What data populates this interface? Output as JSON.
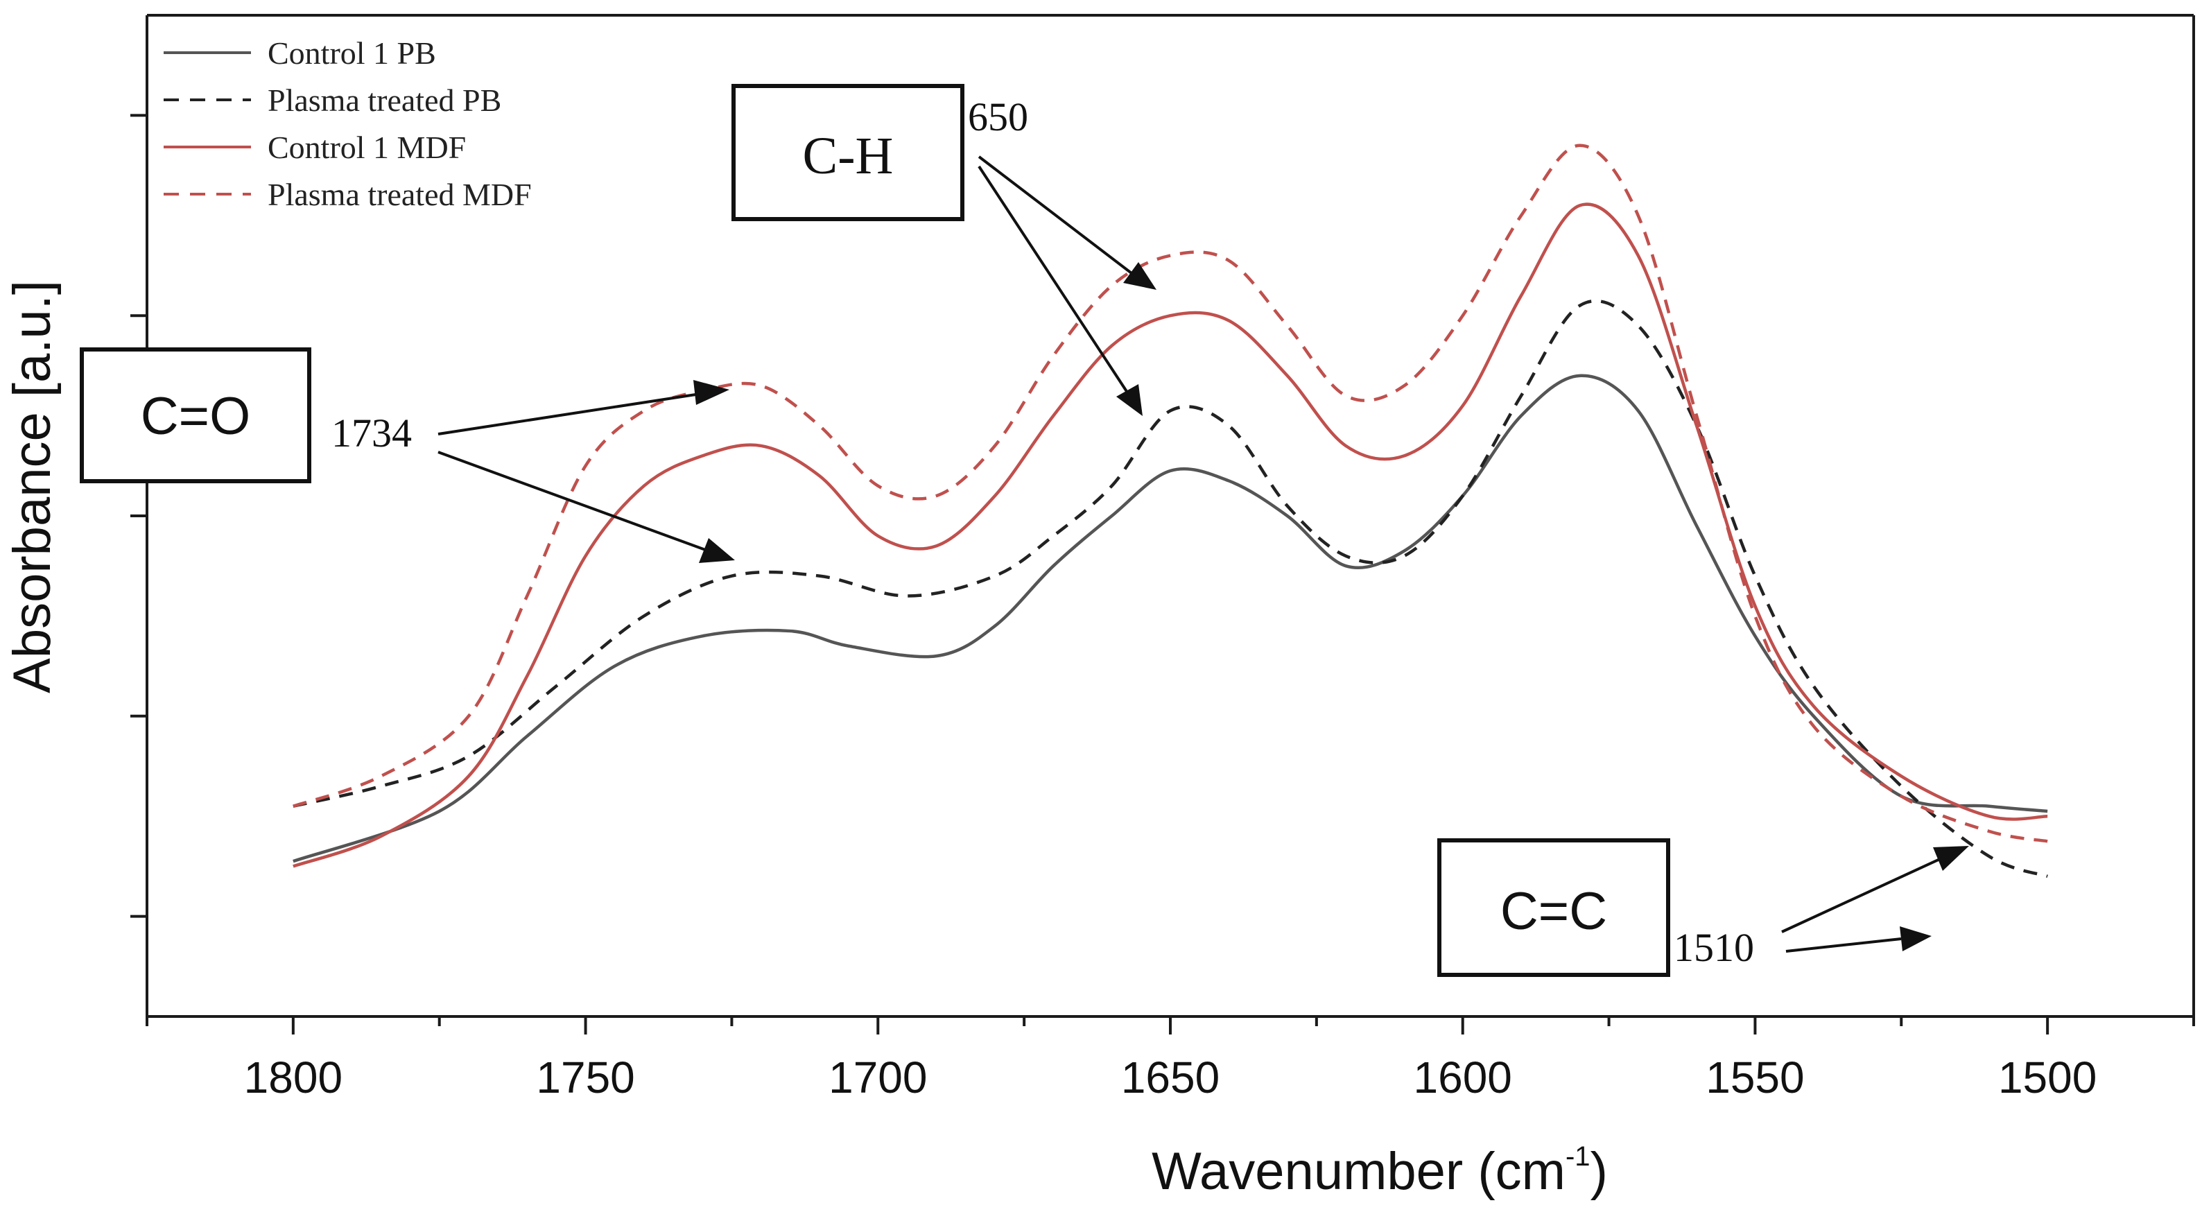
{
  "chart_data": {
    "type": "line",
    "title": "",
    "xlabel": "Wavenumber (cm",
    "xlabel_superscript": "-1",
    "xlabel_close": ")",
    "ylabel": "Absorbance [a.u.]",
    "xlim": [
      1825,
      1475
    ],
    "ylim": [
      0,
      100
    ],
    "x_ticks": [
      1800,
      1750,
      1700,
      1650,
      1600,
      1550,
      1500
    ],
    "x_tick_labels": [
      "1800",
      "1750",
      "1700",
      "1650",
      "1600",
      "1550",
      "1500"
    ],
    "y_ticks": [
      10,
      30,
      50,
      70,
      90
    ],
    "series": [
      {
        "name": "Control 1 PB",
        "color": "#555555",
        "dash": "solid",
        "x": [
          1800,
          1775,
          1760,
          1745,
          1730,
          1715,
          1705,
          1690,
          1680,
          1670,
          1660,
          1650,
          1640,
          1630,
          1620,
          1610,
          1600,
          1590,
          1580,
          1570,
          1560,
          1550,
          1540,
          1525,
          1510,
          1500
        ],
        "y": [
          15.5,
          20.5,
          28,
          35,
          38,
          38.5,
          37,
          36,
          39,
          45,
          50,
          54.5,
          53.5,
          50,
          45,
          46.5,
          52,
          60,
          64,
          60.5,
          49,
          38,
          30,
          22,
          21,
          20.5
        ]
      },
      {
        "name": "Plasma treated PB",
        "color": "#222222",
        "dash": "dashed",
        "x": [
          1800,
          1785,
          1770,
          1755,
          1740,
          1725,
          1710,
          1695,
          1680,
          1670,
          1660,
          1650,
          1640,
          1630,
          1620,
          1610,
          1600,
          1590,
          1580,
          1570,
          1560,
          1550,
          1540,
          1525,
          1510,
          1500
        ],
        "y": [
          21,
          23,
          26,
          33,
          40,
          44,
          44,
          42,
          44,
          48,
          53,
          60.5,
          59,
          51,
          46,
          46,
          52,
          62,
          71,
          69,
          59,
          44,
          33,
          23,
          16,
          14
        ]
      },
      {
        "name": "Control 1 MDF",
        "color": "#c0504d",
        "dash": "solid",
        "x": [
          1800,
          1785,
          1770,
          1760,
          1750,
          1740,
          1730,
          1720,
          1710,
          1700,
          1690,
          1680,
          1670,
          1660,
          1650,
          1640,
          1630,
          1620,
          1610,
          1600,
          1590,
          1580,
          1570,
          1560,
          1550,
          1540,
          1525,
          1510,
          1500
        ],
        "y": [
          15,
          18,
          24,
          34,
          46,
          53,
          56,
          57,
          54,
          48,
          47,
          52,
          60,
          67,
          70,
          69.5,
          64,
          57,
          56,
          61,
          72,
          81,
          76,
          59,
          41,
          31,
          24,
          20,
          20
        ]
      },
      {
        "name": "Plasma treated MDF",
        "color": "#c0504d",
        "dash": "dashed",
        "x": [
          1800,
          1785,
          1770,
          1760,
          1750,
          1740,
          1730,
          1720,
          1710,
          1700,
          1690,
          1680,
          1670,
          1660,
          1650,
          1640,
          1630,
          1620,
          1610,
          1600,
          1590,
          1580,
          1570,
          1560,
          1550,
          1540,
          1525,
          1510,
          1500
        ],
        "y": [
          21,
          24,
          30,
          42,
          55,
          60.5,
          62.5,
          63,
          59,
          53,
          52,
          57,
          66,
          73,
          76,
          75.5,
          69,
          62,
          63,
          70,
          80,
          87,
          80,
          60,
          40,
          29,
          22,
          18.5,
          17.5
        ]
      }
    ],
    "legend_position": "top-left",
    "annotations": [
      {
        "label": "C=O",
        "peak": "1734"
      },
      {
        "label": "C-H",
        "peak": "650"
      },
      {
        "label": "C=C",
        "peak": "1510"
      }
    ]
  }
}
